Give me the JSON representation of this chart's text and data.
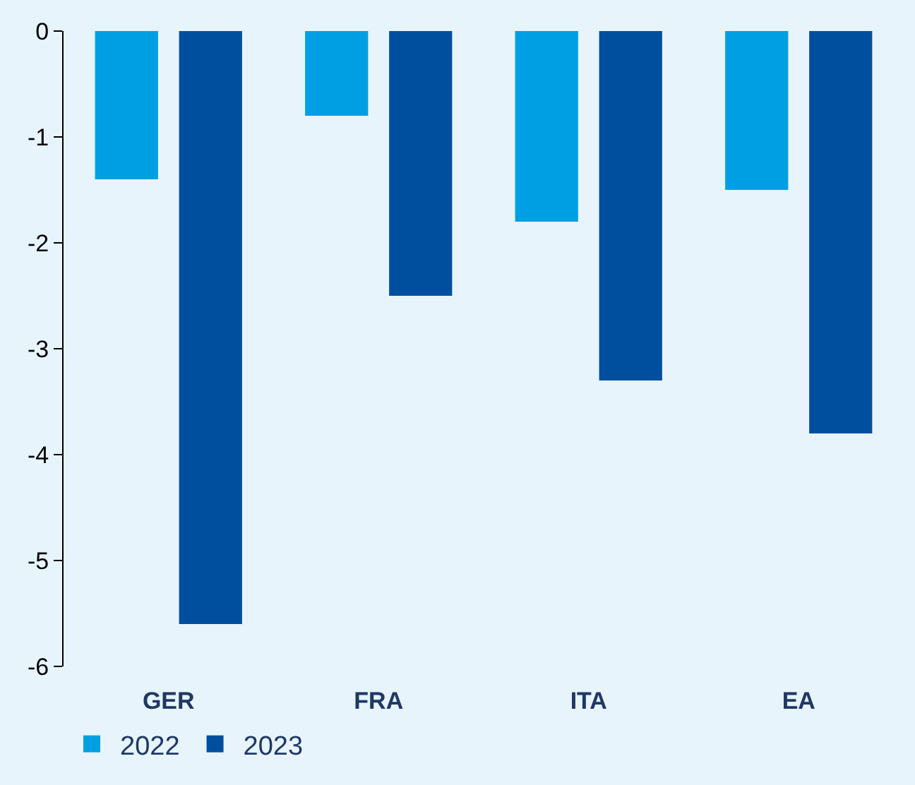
{
  "chart_data": {
    "type": "bar",
    "categories": [
      "GER",
      "FRA",
      "ITA",
      "EA"
    ],
    "series": [
      {
        "name": "2022",
        "color": "#009fe3",
        "values": [
          -1.4,
          -0.8,
          -1.8,
          -1.5
        ]
      },
      {
        "name": "2023",
        "color": "#004f9f",
        "values": [
          -5.6,
          -2.5,
          -3.3,
          -3.8
        ]
      }
    ],
    "ylim": [
      -6,
      0
    ],
    "yticks": [
      -6,
      -5,
      -4,
      -3,
      -2,
      -1,
      0
    ],
    "grid": false,
    "legend": "bottom left"
  }
}
